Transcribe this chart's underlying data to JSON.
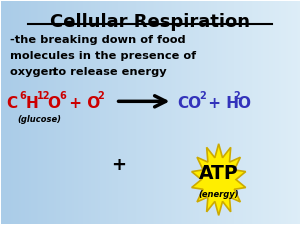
{
  "title": "Cellular Respiration",
  "line1": "-the breaking down of food",
  "line2": "molecules in the presence of",
  "line3a": "oxygen ",
  "line3b": "to release energy",
  "glucose_label": "(glucose)",
  "title_color": "#000000",
  "body_color": "#000000",
  "red_color": "#cc0000",
  "blue_color": "#3333bb",
  "atp_bg": "#ffee00"
}
